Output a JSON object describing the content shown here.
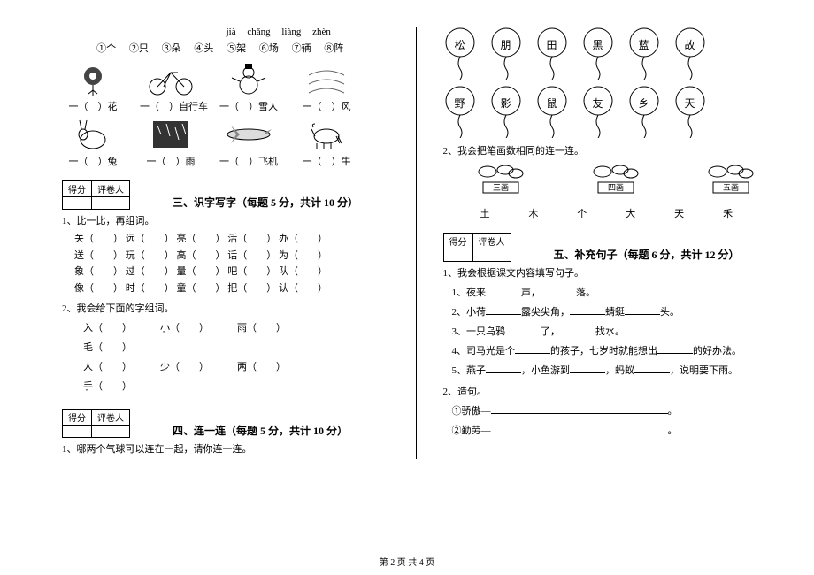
{
  "left": {
    "pinyin": [
      "jià",
      "chǎng",
      "liàng",
      "zhèn"
    ],
    "classifiers": [
      "①个",
      "②只",
      "③朵",
      "④头",
      "⑤架",
      "⑥场",
      "⑦辆",
      "⑧阵"
    ],
    "imgs_row1": [
      {
        "label": "一（　）花"
      },
      {
        "label": "一（　）自行车"
      },
      {
        "label": "一（　）雪人"
      },
      {
        "label": "一（　）风"
      }
    ],
    "imgs_row2": [
      {
        "label": "一（　）兔"
      },
      {
        "label": "一（　）雨"
      },
      {
        "label": "一（　）飞机"
      },
      {
        "label": "一（　）牛"
      }
    ],
    "score_labels": [
      "得分",
      "评卷人"
    ],
    "section3_title": "三、识字写字（每题 5 分，共计 10 分）",
    "q3_1": "1、比一比，再组词。",
    "compare_rows": [
      [
        "关（　　）",
        "远（　　）",
        "亮（　　）",
        "活（　　）",
        "办（　　）"
      ],
      [
        "送（　　）",
        "玩（　　）",
        "高（　　）",
        "话（　　）",
        "为（　　）"
      ],
      [
        "象（　　）",
        "过（　　）",
        "量（　　）",
        "吧（　　）",
        "队（　　）"
      ],
      [
        "像（　　）",
        "时（　　）",
        "童（　　）",
        "把（　　）",
        "认（　　）"
      ]
    ],
    "q3_2": "2、我会给下面的字组词。",
    "fill_rows": [
      [
        "入（　　）",
        "小（　　）",
        "雨（　　）",
        "毛（　　）"
      ],
      [
        "人（　　）",
        "少（　　）",
        "两（　　）",
        "手（　　）"
      ]
    ],
    "section4_title": "四、连一连（每题 5 分，共计 10 分）",
    "q4_1": "1、哪两个气球可以连在一起，请你连一连。"
  },
  "right": {
    "balloons_top": [
      "松",
      "朋",
      "田",
      "黑",
      "蓝",
      "故"
    ],
    "balloons_bottom": [
      "野",
      "影",
      "鼠",
      "友",
      "乡",
      "天"
    ],
    "q4_2": "2、我会把笔画数相同的连一连。",
    "stroke_boxes": [
      "三画",
      "四画",
      "五画"
    ],
    "stroke_chars": [
      "土",
      "木",
      "个",
      "大",
      "天",
      "禾"
    ],
    "score_labels": [
      "得分",
      "评卷人"
    ],
    "section5_title": "五、补充句子（每题 6 分，共计 12 分）",
    "q5_1": "1、我会根据课文内容填写句子。",
    "sentences": [
      {
        "n": "1、",
        "parts": [
          "夜来",
          "声，",
          "落。"
        ]
      },
      {
        "n": "2、",
        "parts": [
          "小荷",
          "露尖尖角，",
          "蜻蜓",
          "头。"
        ]
      },
      {
        "n": "3、",
        "parts": [
          "一只乌鸦",
          "了，",
          "找水。"
        ]
      },
      {
        "n": "4、",
        "parts": [
          "司马光是个",
          "的孩子，七岁时就能想出",
          "的好办法。"
        ]
      },
      {
        "n": "5、",
        "parts": [
          "燕子",
          "，小鱼游到",
          "，蚂蚁",
          "，说明要下雨。"
        ]
      }
    ],
    "q5_2": "2、造句。",
    "make_sentences": [
      "①骄傲—",
      "②勤劳—"
    ]
  },
  "footer": "第 2 页  共 4 页",
  "colors": {
    "line": "#000000",
    "bg": "#ffffff"
  }
}
